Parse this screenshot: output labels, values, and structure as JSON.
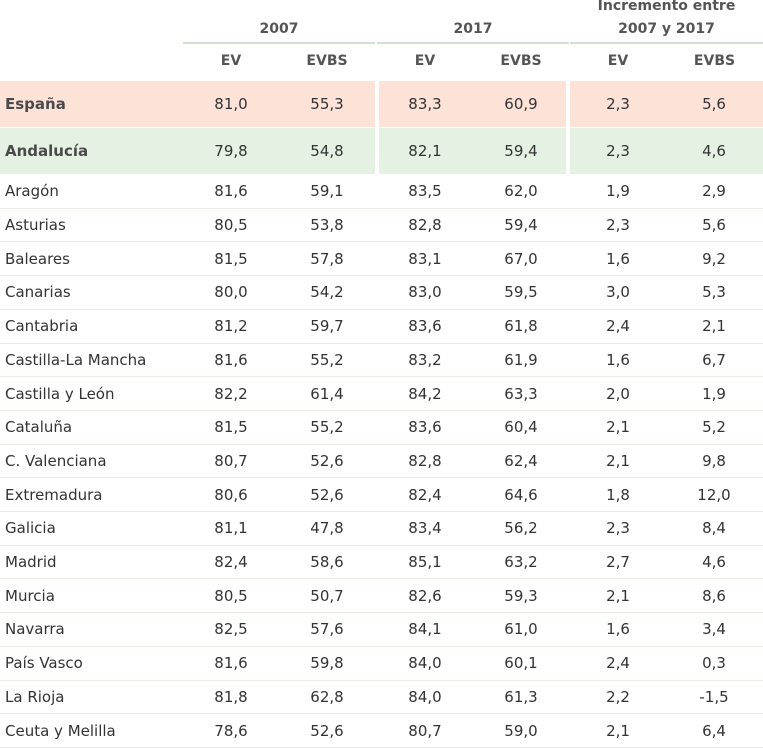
{
  "header": {
    "group_2007": "2007",
    "group_2017": "2017",
    "group_incr_line1": "Incremento entre",
    "group_incr_line2": "2007 y 2017",
    "columns": [
      "EV",
      "EVBS",
      "EV",
      "EVBS",
      "EV",
      "EVBS"
    ]
  },
  "colors": {
    "espana_bg": "#fde2d8",
    "andalucia_bg": "#e5f1e2",
    "header_rule": "#cfe2cf",
    "row_rule": "#e6eee6"
  },
  "rows": [
    {
      "region": "España",
      "values": [
        "81,0",
        "55,3",
        "83,3",
        "60,9",
        "2,3",
        "5,6"
      ]
    },
    {
      "region": "Andalucía",
      "values": [
        "79,8",
        "54,8",
        "82,1",
        "59,4",
        "2,3",
        "4,6"
      ]
    },
    {
      "region": "Aragón",
      "values": [
        "81,6",
        "59,1",
        "83,5",
        "62,0",
        "1,9",
        "2,9"
      ]
    },
    {
      "region": "Asturias",
      "values": [
        "80,5",
        "53,8",
        "82,8",
        "59,4",
        "2,3",
        "5,6"
      ]
    },
    {
      "region": "Baleares",
      "values": [
        "81,5",
        "57,8",
        "83,1",
        "67,0",
        "1,6",
        "9,2"
      ]
    },
    {
      "region": "Canarias",
      "values": [
        "80,0",
        "54,2",
        "83,0",
        "59,5",
        "3,0",
        "5,3"
      ]
    },
    {
      "region": "Cantabria",
      "values": [
        "81,2",
        "59,7",
        "83,6",
        "61,8",
        "2,4",
        "2,1"
      ]
    },
    {
      "region": "Castilla-La Mancha",
      "values": [
        "81,6",
        "55,2",
        "83,2",
        "61,9",
        "1,6",
        "6,7"
      ]
    },
    {
      "region": "Castilla y León",
      "values": [
        "82,2",
        "61,4",
        "84,2",
        "63,3",
        "2,0",
        "1,9"
      ]
    },
    {
      "region": "Cataluña",
      "values": [
        "81,5",
        "55,2",
        "83,6",
        "60,4",
        "2,1",
        "5,2"
      ]
    },
    {
      "region": "C. Valenciana",
      "values": [
        "80,7",
        "52,6",
        "82,8",
        "62,4",
        "2,1",
        "9,8"
      ]
    },
    {
      "region": "Extremadura",
      "values": [
        "80,6",
        "52,6",
        "82,4",
        "64,6",
        "1,8",
        "12,0"
      ]
    },
    {
      "region": "Galicia",
      "values": [
        "81,1",
        "47,8",
        "83,4",
        "56,2",
        "2,3",
        "8,4"
      ]
    },
    {
      "region": "Madrid",
      "values": [
        "82,4",
        "58,6",
        "85,1",
        "63,2",
        "2,7",
        "4,6"
      ]
    },
    {
      "region": "Murcia",
      "values": [
        "80,5",
        "50,7",
        "82,6",
        "59,3",
        "2,1",
        "8,6"
      ]
    },
    {
      "region": "Navarra",
      "values": [
        "82,5",
        "57,6",
        "84,1",
        "61,0",
        "1,6",
        "3,4"
      ]
    },
    {
      "region": "País Vasco",
      "values": [
        "81,6",
        "59,8",
        "84,0",
        "60,1",
        "2,4",
        "0,3"
      ]
    },
    {
      "region": "La Rioja",
      "values": [
        "81,8",
        "62,8",
        "84,0",
        "61,3",
        "2,2",
        "-1,5"
      ]
    },
    {
      "region": "Ceuta y Melilla",
      "values": [
        "78,6",
        "52,6",
        "80,7",
        "59,0",
        "2,1",
        "6,4"
      ]
    }
  ]
}
